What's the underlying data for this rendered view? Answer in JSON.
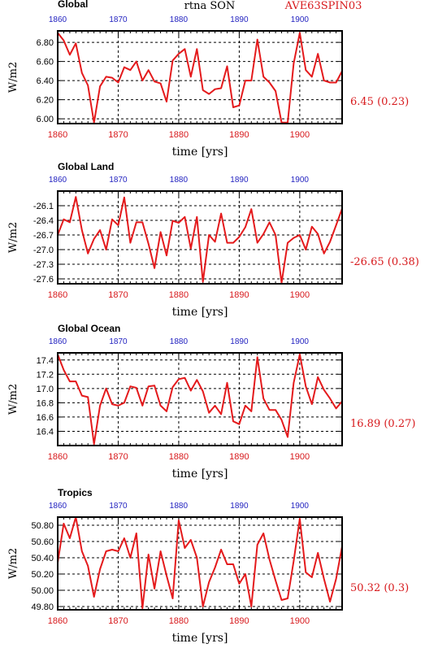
{
  "header": {
    "left": "Global",
    "center": "rtna SON",
    "right": "AVE63SPIN03"
  },
  "colors": {
    "line": "#e41a1c",
    "label_red": "#d7191c",
    "top_ticks": "#1f1fbf",
    "frame": "#000000",
    "grid": "#000000"
  },
  "axis": {
    "xlabel": "time [yrs]",
    "ylabel": "W/m2",
    "x_ticks": [
      1860,
      1870,
      1880,
      1890,
      1900
    ],
    "x_range": [
      1860,
      1907
    ]
  },
  "chart_data": [
    {
      "type": "line",
      "title": "Global",
      "ylim": [
        5.95,
        6.92
      ],
      "y_ticks": [
        "6.00",
        "6.20",
        "6.40",
        "6.60",
        "6.80"
      ],
      "y_tick_values": [
        6.0,
        6.2,
        6.4,
        6.6,
        6.8
      ],
      "annotation": "6.45 (0.23)",
      "grid": true,
      "x": [
        1860,
        1861,
        1862,
        1863,
        1864,
        1865,
        1866,
        1867,
        1868,
        1869,
        1870,
        1871,
        1872,
        1873,
        1874,
        1875,
        1876,
        1877,
        1878,
        1879,
        1880,
        1881,
        1882,
        1883,
        1884,
        1885,
        1886,
        1887,
        1888,
        1889,
        1890,
        1891,
        1892,
        1893,
        1894,
        1895,
        1896,
        1897,
        1898,
        1899,
        1900,
        1901,
        1902,
        1903,
        1904,
        1905,
        1906,
        1907
      ],
      "values": [
        6.9,
        6.82,
        6.67,
        6.79,
        6.48,
        6.35,
        5.96,
        6.34,
        6.44,
        6.43,
        6.38,
        6.54,
        6.51,
        6.6,
        6.4,
        6.51,
        6.39,
        6.37,
        6.18,
        6.61,
        6.68,
        6.73,
        6.44,
        6.73,
        6.3,
        6.26,
        6.31,
        6.32,
        6.55,
        6.12,
        6.14,
        6.4,
        6.4,
        6.83,
        6.44,
        6.38,
        6.29,
        5.96,
        5.96,
        6.58,
        6.9,
        6.51,
        6.44,
        6.68,
        6.4,
        6.38,
        6.38,
        6.5
      ]
    },
    {
      "type": "line",
      "title": "Global Land",
      "ylim": [
        -27.7,
        -25.8
      ],
      "y_ticks": [
        "-27.6",
        "-27.3",
        "-27.0",
        "-26.7",
        "-26.4",
        "-26.1"
      ],
      "y_tick_values": [
        -27.6,
        -27.3,
        -27.0,
        -26.7,
        -26.4,
        -26.1
      ],
      "annotation": "-26.65 (0.38)",
      "grid": true,
      "x": [
        1860,
        1861,
        1862,
        1863,
        1864,
        1865,
        1866,
        1867,
        1868,
        1869,
        1870,
        1871,
        1872,
        1873,
        1874,
        1875,
        1876,
        1877,
        1878,
        1879,
        1880,
        1881,
        1882,
        1883,
        1884,
        1885,
        1886,
        1887,
        1888,
        1889,
        1890,
        1891,
        1892,
        1893,
        1894,
        1895,
        1896,
        1897,
        1898,
        1899,
        1900,
        1901,
        1902,
        1903,
        1904,
        1905,
        1906,
        1907
      ],
      "values": [
        -26.7,
        -26.38,
        -26.44,
        -25.92,
        -26.6,
        -27.08,
        -26.78,
        -26.6,
        -27.0,
        -26.38,
        -26.5,
        -25.93,
        -26.86,
        -26.44,
        -26.44,
        -26.88,
        -27.38,
        -26.64,
        -27.12,
        -26.41,
        -26.45,
        -26.33,
        -26.98,
        -26.33,
        -27.66,
        -26.7,
        -26.84,
        -26.26,
        -26.86,
        -26.86,
        -26.74,
        -26.54,
        -26.17,
        -26.86,
        -26.68,
        -26.44,
        -26.7,
        -27.68,
        -26.86,
        -26.76,
        -26.7,
        -27.0,
        -26.53,
        -26.68,
        -27.08,
        -26.84,
        -26.5,
        -26.16
      ]
    },
    {
      "type": "line",
      "title": "Global Ocean",
      "ylim": [
        16.2,
        17.5
      ],
      "y_ticks": [
        "16.4",
        "16.6",
        "16.8",
        "17.0",
        "17.2",
        "17.4"
      ],
      "y_tick_values": [
        16.4,
        16.6,
        16.8,
        17.0,
        17.2,
        17.4
      ],
      "annotation": "16.89 (0.27)",
      "grid": true,
      "x": [
        1860,
        1861,
        1862,
        1863,
        1864,
        1865,
        1866,
        1867,
        1868,
        1869,
        1870,
        1871,
        1872,
        1873,
        1874,
        1875,
        1876,
        1877,
        1878,
        1879,
        1880,
        1881,
        1882,
        1883,
        1884,
        1885,
        1886,
        1887,
        1888,
        1889,
        1890,
        1891,
        1892,
        1893,
        1894,
        1895,
        1896,
        1897,
        1898,
        1899,
        1900,
        1901,
        1902,
        1903,
        1904,
        1905,
        1906,
        1907
      ],
      "values": [
        17.48,
        17.26,
        17.1,
        17.1,
        16.9,
        16.88,
        16.22,
        16.76,
        17.0,
        16.78,
        16.76,
        16.8,
        17.03,
        17.01,
        16.76,
        17.03,
        17.04,
        16.76,
        16.68,
        17.02,
        17.13,
        17.15,
        16.97,
        17.12,
        16.96,
        16.66,
        16.76,
        16.64,
        17.08,
        16.54,
        16.5,
        16.76,
        16.68,
        17.44,
        16.86,
        16.7,
        16.7,
        16.56,
        16.32,
        17.08,
        17.48,
        17.03,
        16.78,
        17.16,
        16.98,
        16.86,
        16.72,
        16.82
      ]
    },
    {
      "type": "line",
      "title": "Tropics",
      "ylim": [
        49.76,
        50.9
      ],
      "y_ticks": [
        "49.80",
        "50.00",
        "50.20",
        "50.40",
        "50.60",
        "50.80"
      ],
      "y_tick_values": [
        49.8,
        50.0,
        50.2,
        50.4,
        50.6,
        50.8
      ],
      "annotation": "50.32 (0.3)",
      "grid": true,
      "x": [
        1860,
        1861,
        1862,
        1863,
        1864,
        1865,
        1866,
        1867,
        1868,
        1869,
        1870,
        1871,
        1872,
        1873,
        1874,
        1875,
        1876,
        1877,
        1878,
        1879,
        1880,
        1881,
        1882,
        1883,
        1884,
        1885,
        1886,
        1887,
        1888,
        1889,
        1890,
        1891,
        1892,
        1893,
        1894,
        1895,
        1896,
        1897,
        1898,
        1899,
        1900,
        1901,
        1902,
        1903,
        1904,
        1905,
        1906,
        1907
      ],
      "values": [
        50.34,
        50.82,
        50.64,
        50.9,
        50.48,
        50.3,
        49.92,
        50.26,
        50.48,
        50.5,
        50.48,
        50.64,
        50.4,
        50.7,
        49.78,
        50.44,
        50.02,
        50.48,
        50.18,
        49.9,
        50.86,
        50.52,
        50.62,
        50.4,
        49.8,
        50.1,
        50.28,
        50.5,
        50.32,
        50.32,
        50.08,
        50.2,
        49.8,
        50.56,
        50.7,
        50.38,
        50.12,
        49.88,
        49.9,
        50.36,
        50.88,
        50.22,
        50.16,
        50.46,
        50.14,
        49.86,
        50.14,
        50.54
      ]
    }
  ]
}
